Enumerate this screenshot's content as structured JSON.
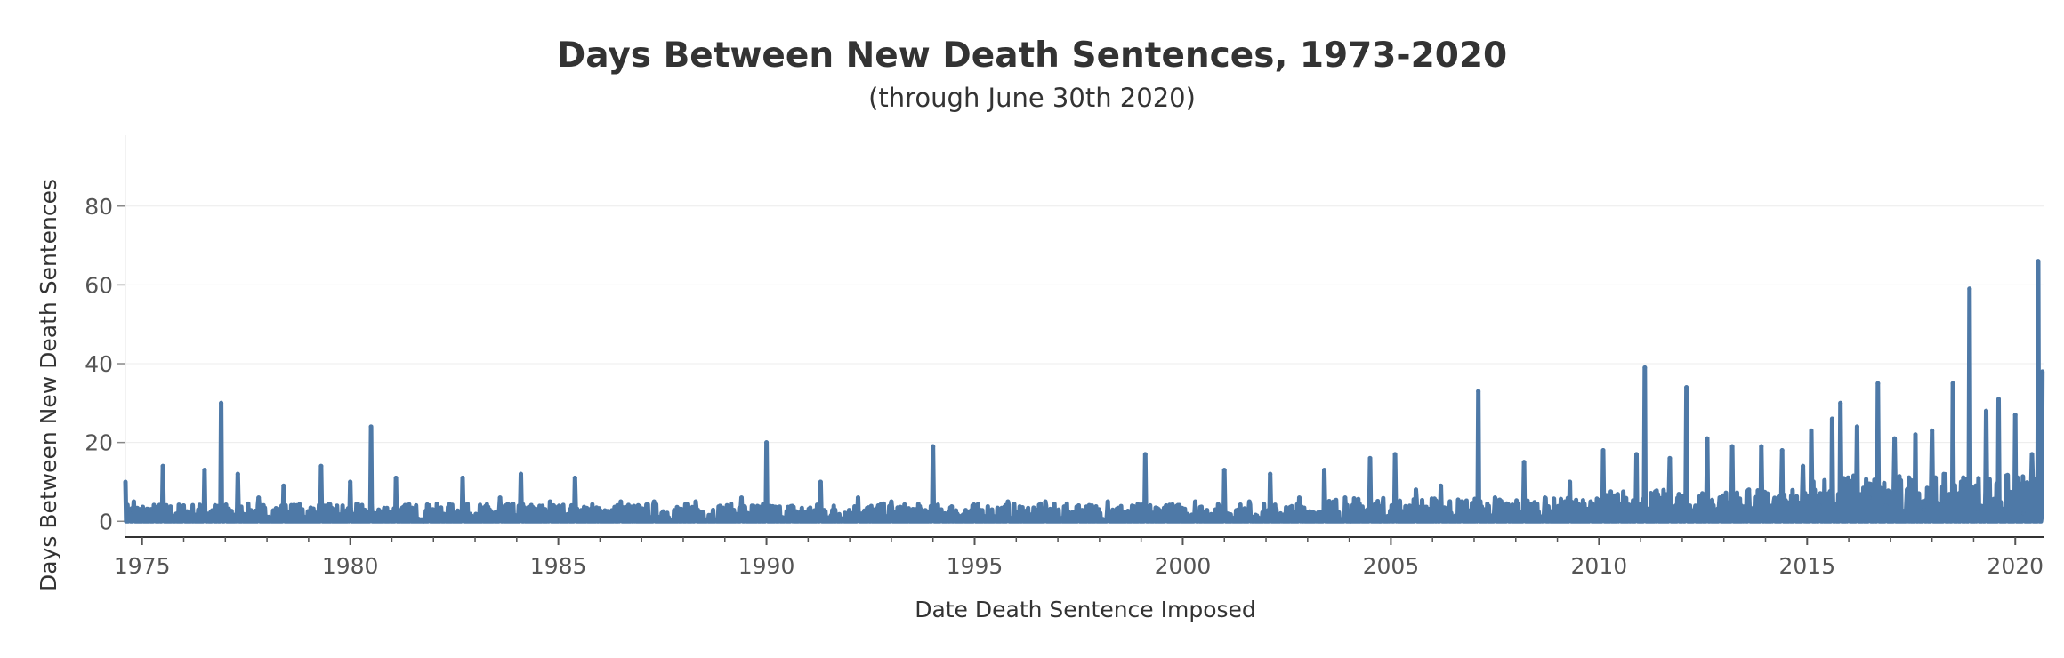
{
  "chart_data": {
    "type": "line",
    "title": "Days Between New Death Sentences, 1973-2020",
    "subtitle": "(through June 30th 2020)",
    "xlabel": "Date Death Sentence Imposed",
    "ylabel": "Days Between New Death Sentences",
    "x_ticks": [
      "1975",
      "1980",
      "1985",
      "1990",
      "1995",
      "2000",
      "2005",
      "2010",
      "2015",
      "2020"
    ],
    "y_ticks": [
      "0",
      "20",
      "40",
      "60",
      "80"
    ],
    "xlim": [
      1974.6,
      2020.7
    ],
    "ylim": [
      -4,
      98
    ],
    "grid": true,
    "series": [
      {
        "color": "#4e79a7",
        "x": [
          1974.6,
          1974.7,
          1974.8,
          1975.3,
          1975.5,
          1976.0,
          1976.5,
          1976.7,
          1976.9,
          1977.0,
          1977.3,
          1977.8,
          1978.4,
          1979.3,
          1980.0,
          1980.5,
          1981.1,
          1981.9,
          1982.7,
          1983.6,
          1984.1,
          1984.8,
          1985.4,
          1986.5,
          1987.3,
          1988.3,
          1989.4,
          1990.0,
          1990.6,
          1991.3,
          1992.2,
          1993.0,
          1994.0,
          1994.2,
          1995.0,
          1995.8,
          1996.7,
          1997.5,
          1998.2,
          1999.1,
          1999.6,
          2000.3,
          2001.0,
          2001.6,
          2002.1,
          2002.8,
          2003.4,
          2003.9,
          2004.5,
          2004.8,
          2005.1,
          2005.6,
          2006.2,
          2006.7,
          2007.1,
          2007.5,
          2007.8,
          2008.2,
          2008.7,
          2009.3,
          2009.8,
          2010.1,
          2010.5,
          2010.9,
          2011.1,
          2011.4,
          2011.7,
          2011.9,
          2012.1,
          2012.3,
          2012.6,
          2012.9,
          2013.2,
          2013.6,
          2013.9,
          2014.2,
          2014.4,
          2014.7,
          2014.9,
          2015.1,
          2015.3,
          2015.6,
          2015.8,
          2016.0,
          2016.2,
          2016.5,
          2016.7,
          2016.9,
          2017.1,
          2017.4,
          2017.6,
          2017.8,
          2018.0,
          2018.3,
          2018.5,
          2018.7,
          2018.9,
          2019.1,
          2019.3,
          2019.6,
          2019.8,
          2020.0,
          2020.2,
          2020.4,
          2020.55,
          2020.65
        ],
        "y": [
          10,
          2,
          5,
          3,
          14,
          4,
          13,
          2,
          30,
          4,
          12,
          6,
          9,
          14,
          10,
          24,
          11,
          4,
          11,
          6,
          12,
          5,
          11,
          5,
          5,
          5,
          6,
          20,
          3,
          10,
          6,
          5,
          19,
          3,
          4,
          5,
          5,
          4,
          5,
          17,
          4,
          5,
          13,
          5,
          12,
          6,
          13,
          6,
          16,
          4,
          17,
          8,
          9,
          5,
          33,
          6,
          4,
          15,
          6,
          10,
          5,
          18,
          4,
          17,
          39,
          6,
          16,
          5,
          34,
          3,
          21,
          6,
          19,
          8,
          19,
          5,
          18,
          6,
          14,
          23,
          4,
          26,
          30,
          10,
          24,
          6,
          35,
          4,
          21,
          8,
          22,
          3,
          23,
          5,
          35,
          10,
          59,
          3,
          28,
          31,
          4,
          27,
          2,
          17,
          66,
          38
        ]
      }
    ]
  }
}
